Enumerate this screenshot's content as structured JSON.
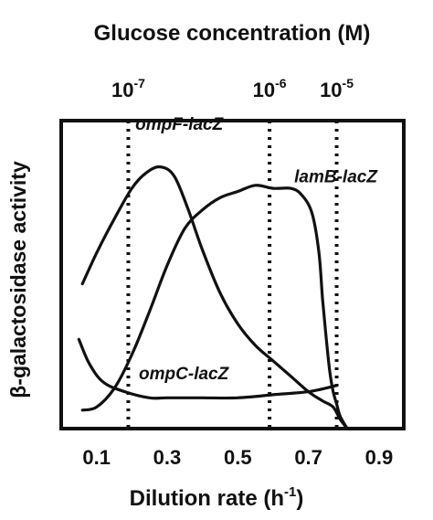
{
  "chart_data": {
    "type": "line",
    "title": "",
    "xlabel": "Dilution rate (h",
    "xlabel_sup": "-1",
    "xlabel_close": ")",
    "ylabel": "β-galactosidase activity",
    "top_axis_label": "Glucose concentration (M)",
    "top_ticks": [
      {
        "x": 0.19,
        "base": "10",
        "exp": "-7"
      },
      {
        "x": 0.59,
        "base": "10",
        "exp": "-6"
      },
      {
        "x": 0.78,
        "base": "10",
        "exp": "-5"
      }
    ],
    "xlim": [
      0.0,
      0.97
    ],
    "ylim": [
      0,
      100
    ],
    "x_ticks": [
      "0.1",
      "0.3",
      "0.5",
      "0.7",
      "0.9"
    ],
    "x_tick_values": [
      0.1,
      0.3,
      0.5,
      0.7,
      0.9
    ],
    "series": [
      {
        "name": "ompF-lacZ",
        "points": [
          [
            0.06,
            47
          ],
          [
            0.1,
            57
          ],
          [
            0.15,
            68
          ],
          [
            0.2,
            78
          ],
          [
            0.24,
            83
          ],
          [
            0.28,
            85
          ],
          [
            0.32,
            82
          ],
          [
            0.36,
            71
          ],
          [
            0.4,
            58
          ],
          [
            0.45,
            44
          ],
          [
            0.5,
            34
          ],
          [
            0.55,
            27
          ],
          [
            0.6,
            22
          ],
          [
            0.65,
            17
          ],
          [
            0.7,
            12
          ],
          [
            0.74,
            9
          ],
          [
            0.77,
            7
          ],
          [
            0.79,
            3
          ],
          [
            0.81,
            0
          ]
        ]
      },
      {
        "name": "lamB-lacZ",
        "points": [
          [
            0.06,
            6
          ],
          [
            0.1,
            7
          ],
          [
            0.15,
            13
          ],
          [
            0.2,
            24
          ],
          [
            0.25,
            38
          ],
          [
            0.3,
            53
          ],
          [
            0.35,
            65
          ],
          [
            0.4,
            71
          ],
          [
            0.45,
            75
          ],
          [
            0.5,
            77
          ],
          [
            0.55,
            79
          ],
          [
            0.6,
            78
          ],
          [
            0.65,
            78
          ],
          [
            0.68,
            76
          ],
          [
            0.71,
            70
          ],
          [
            0.73,
            57
          ],
          [
            0.74,
            42
          ],
          [
            0.75,
            30
          ],
          [
            0.76,
            19
          ],
          [
            0.77,
            12
          ],
          [
            0.78,
            8
          ],
          [
            0.79,
            4
          ],
          [
            0.81,
            0
          ]
        ]
      },
      {
        "name": "ompC-lacZ",
        "points": [
          [
            0.05,
            29
          ],
          [
            0.08,
            21
          ],
          [
            0.12,
            15
          ],
          [
            0.18,
            12
          ],
          [
            0.25,
            10
          ],
          [
            0.3,
            10
          ],
          [
            0.4,
            10
          ],
          [
            0.5,
            10
          ],
          [
            0.6,
            11
          ],
          [
            0.7,
            12
          ],
          [
            0.78,
            14
          ]
        ]
      }
    ],
    "series_label_anchor": [
      {
        "name": "ompF-lacZ",
        "x": 0.21,
        "y": 97
      },
      {
        "name": "lamB-lacZ",
        "x": 0.66,
        "y": 80
      },
      {
        "name": "ompC-lacZ",
        "x": 0.22,
        "y": 16
      }
    ],
    "grid": false,
    "legend": "inline-labels",
    "line_color": "#111111",
    "dotted_line_color": "#111111"
  }
}
